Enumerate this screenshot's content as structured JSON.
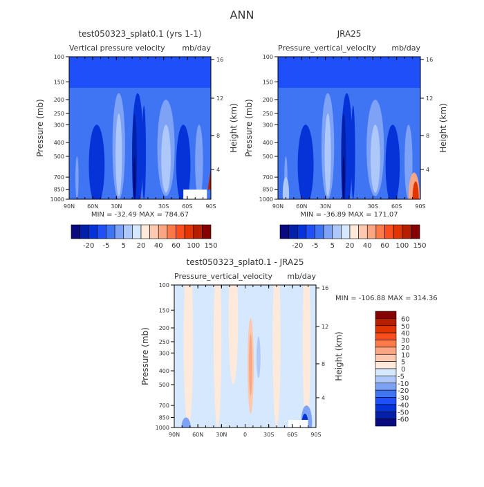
{
  "page_title": "ANN",
  "chart_data": [
    {
      "type": "heatmap",
      "title": "test050323_splat0.1 (yrs 1-1)",
      "subtitle": "Vertical pressure velocity",
      "units": "mb/day",
      "ylabel": "Pressure (mb)",
      "ylabel_right": "Height (km)",
      "y_scale": "log",
      "ylim": [
        1000,
        100
      ],
      "xlim": [
        "90N",
        "90S"
      ],
      "x_ticks": [
        "90N",
        "60N",
        "30N",
        "0",
        "30S",
        "60S",
        "90S"
      ],
      "y_ticks": [
        100,
        150,
        200,
        250,
        300,
        400,
        500,
        700,
        850,
        1000
      ],
      "y_ticks_right": [
        4,
        8,
        12,
        16
      ],
      "stats": "MIN = -32.49   MAX = 784.67",
      "colorbar": {
        "orientation": "horizontal",
        "labels": [
          "-20",
          "-5",
          "5",
          "20",
          "40",
          "60",
          "100",
          "150"
        ],
        "colors": [
          "#0a0a80",
          "#0320a8",
          "#0533d8",
          "#1e4ff8",
          "#3f74f2",
          "#7ea2f6",
          "#aec8fa",
          "#d6e8fd",
          "#fee9da",
          "#fcc9b0",
          "#fba682",
          "#fb7a48",
          "#fb4e1c",
          "#e23400",
          "#b51f00",
          "#870000"
        ]
      }
    },
    {
      "type": "heatmap",
      "title": "JRA25",
      "subtitle": "Pressure_vertical_velocity",
      "units": "mb/day",
      "ylabel": "Pressure (mb)",
      "ylabel_right": "Height (km)",
      "y_scale": "log",
      "ylim": [
        1000,
        100
      ],
      "xlim": [
        "90N",
        "90S"
      ],
      "x_ticks": [
        "90N",
        "60N",
        "30N",
        "0",
        "30S",
        "60S",
        "90S"
      ],
      "y_ticks": [
        100,
        150,
        200,
        250,
        300,
        400,
        500,
        700,
        850,
        1000
      ],
      "y_ticks_right": [
        4,
        8,
        12,
        16
      ],
      "stats": "MIN = -36.89   MAX = 171.07",
      "colorbar": {
        "orientation": "horizontal",
        "labels": [
          "-20",
          "-5",
          "5",
          "20",
          "40",
          "60",
          "100",
          "150"
        ],
        "colors": [
          "#0a0a80",
          "#0320a8",
          "#0533d8",
          "#1e4ff8",
          "#3f74f2",
          "#7ea2f6",
          "#aec8fa",
          "#d6e8fd",
          "#fee9da",
          "#fcc9b0",
          "#fba682",
          "#fb7a48",
          "#fb4e1c",
          "#e23400",
          "#b51f00",
          "#870000"
        ]
      }
    },
    {
      "type": "heatmap",
      "title": "test050323_splat0.1 - JRA25",
      "subtitle": "Pressure_vertical_velocity",
      "units": "mb/day",
      "ylabel": "Pressure (mb)",
      "ylabel_right": "Height (km)",
      "y_scale": "log",
      "ylim": [
        1000,
        100
      ],
      "xlim": [
        "90N",
        "90S"
      ],
      "x_ticks": [
        "90N",
        "60N",
        "30N",
        "0",
        "30S",
        "60S",
        "90S"
      ],
      "y_ticks": [
        100,
        150,
        200,
        250,
        300,
        400,
        500,
        700,
        850,
        1000
      ],
      "y_ticks_right": [
        4,
        8,
        12,
        16
      ],
      "stats": "MIN = -106.88   MAX = 314.36",
      "colorbar": {
        "orientation": "vertical",
        "labels": [
          "60",
          "50",
          "40",
          "30",
          "20",
          "10",
          "5",
          "0",
          "-5",
          "-10",
          "-20",
          "-30",
          "-40",
          "-50",
          "-60"
        ],
        "colors": [
          "#870000",
          "#b51f00",
          "#e23400",
          "#fb4e1c",
          "#fb7a48",
          "#fba682",
          "#fcc9b0",
          "#fee9da",
          "#d6e8fd",
          "#aec8fa",
          "#7ea2f6",
          "#3f74f2",
          "#1e4ff8",
          "#0533d8",
          "#0320a8",
          "#0a0a80"
        ]
      }
    }
  ]
}
